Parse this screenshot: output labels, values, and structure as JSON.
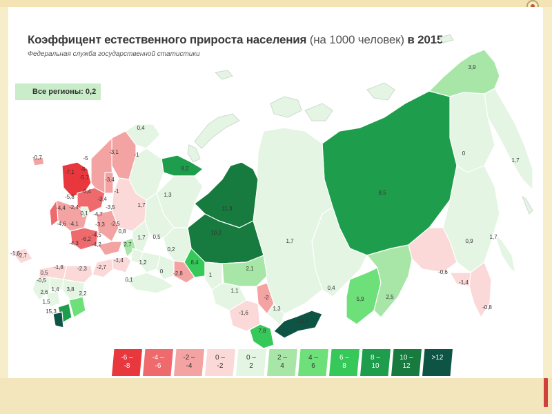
{
  "title_main": "Коэффицент естественного прироста населения",
  "title_unit": "(на 1000 человек)",
  "title_year": "в 2015",
  "subtitle": "Федеральная служба государственной статистики",
  "all_regions": "Все регионы: 0,2",
  "colors": {
    "neg8_6": "#e8383d",
    "neg6_4": "#ee6a6c",
    "neg4_2": "#f4a3a3",
    "neg2_0": "#fbd9d9",
    "p0_2": "#e4f5e4",
    "p2_4": "#a8e6a8",
    "p4_6": "#6ee07a",
    "p6_8": "#36c95a",
    "p8_10": "#1e9e4c",
    "p10_12": "#177a3e",
    "p12": "#0e5445"
  },
  "legend": [
    {
      "line1": "-6 –",
      "line2": "-8",
      "color": "#e8383d"
    },
    {
      "line1": "-4 –",
      "line2": "-6",
      "color": "#ee6a6c"
    },
    {
      "line1": "-2 –",
      "line2": "-4",
      "color": "#f4a3a3"
    },
    {
      "line1": "0 –",
      "line2": "-2",
      "color": "#fbd9d9"
    },
    {
      "line1": "0 –",
      "line2": "2",
      "color": "#e4f5e4"
    },
    {
      "line1": "2 –",
      "line2": "4",
      "color": "#a8e6a8"
    },
    {
      "line1": "4 –",
      "line2": "6",
      "color": "#6ee07a"
    },
    {
      "line1": "6 –",
      "line2": "8",
      "color": "#36c95a"
    },
    {
      "line1": "8 –",
      "line2": "10",
      "color": "#1e9e4c"
    },
    {
      "line1": "10 –",
      "line2": "12",
      "color": "#177a3e"
    },
    {
      "line1": ">12",
      "line2": "",
      "color": "#0e5445"
    }
  ],
  "region_values": [
    "3,9",
    "1,7",
    "0",
    "8,5",
    "0,9",
    "0,4",
    "-0,6",
    "-1,4",
    "-0,8",
    "1,7",
    "1,7",
    "5,9",
    "2,5",
    "11,3",
    "10,2",
    "8,2",
    "1,3",
    "0,4",
    "-1",
    "-3,1",
    "-1",
    "13,4",
    "7,8",
    "-1,6",
    "-2",
    "1,3",
    "2,1",
    "8,4",
    "1",
    "1,1",
    "-2,8",
    "0,2",
    "0,5",
    "1,7",
    "0,8",
    "2,7",
    "-1,4",
    "1,2",
    "0",
    "0,1",
    "-2,7",
    "-2,3",
    "-1,8",
    "-2,7",
    "0,5",
    "-0,5",
    "2,6",
    "1,4",
    "3,8",
    "2,2",
    "1,5",
    "15,3",
    "-7,1",
    "-5",
    "-5,7",
    "-5,8",
    "-4,4",
    "-2,4",
    "-6,4",
    "-3,4",
    "-4,6",
    "-4,1",
    "-4,3",
    "-6,2",
    "-4,5",
    "-4,2",
    "-3,3",
    "-3,5",
    "-2,5",
    "-4,7",
    "-5",
    "-3,4",
    "0,1",
    "-1,6",
    "-0,7",
    "1,7"
  ]
}
